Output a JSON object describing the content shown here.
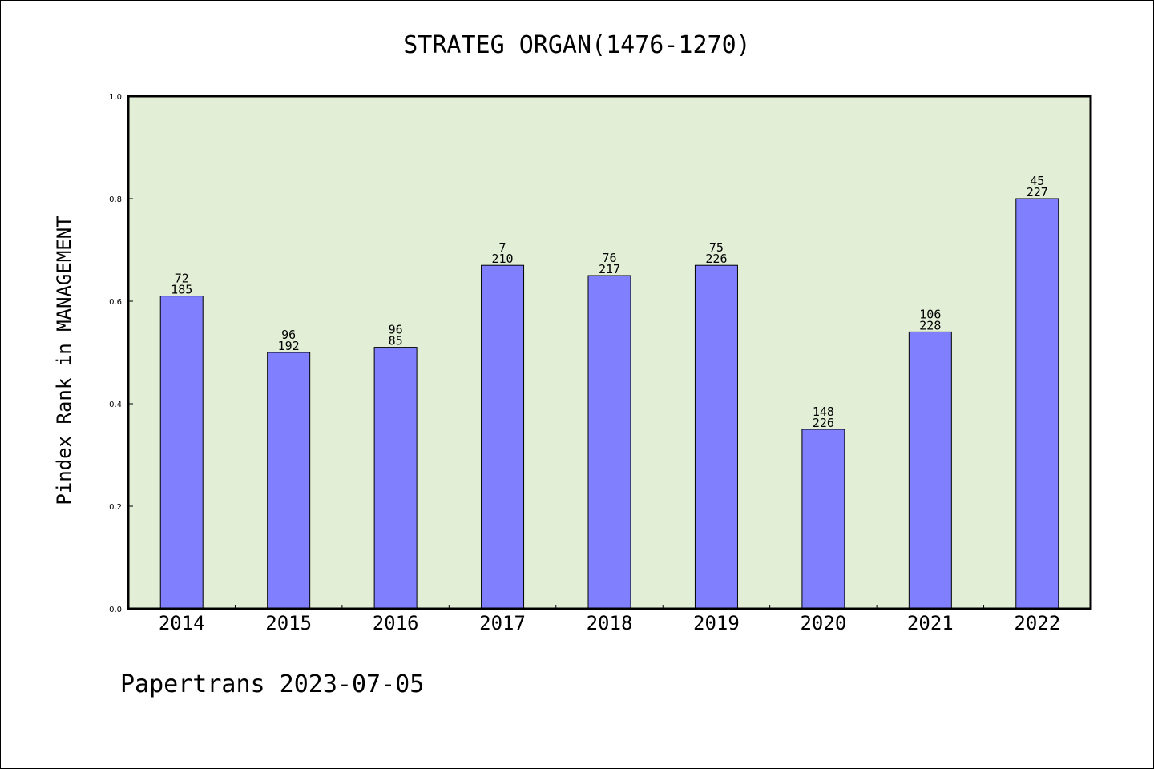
{
  "chart_data": {
    "type": "bar",
    "title": "STRATEG ORGAN(1476-1270)",
    "ylabel": "Pindex Rank in MANAGEMENT",
    "xlabel": "",
    "ylim": [
      0,
      1.0
    ],
    "yticks": [
      "0.0",
      "0.2",
      "0.4",
      "0.6",
      "0.8",
      "1.0"
    ],
    "categories": [
      "2014",
      "2015",
      "2016",
      "2017",
      "2018",
      "2019",
      "2020",
      "2021",
      "2022"
    ],
    "values": [
      0.61,
      0.5,
      0.51,
      0.67,
      0.65,
      0.67,
      0.35,
      0.54,
      0.8
    ],
    "labels_top": [
      "72",
      "96",
      "96",
      "7",
      "76",
      "75",
      "148",
      "106",
      "45"
    ],
    "labels_bottom": [
      "185",
      "192",
      "85",
      "210",
      "217",
      "226",
      "226",
      "228",
      "227"
    ],
    "grid": false,
    "legend": "none",
    "colors": {
      "plot_background": "#e2efd6",
      "bar_fill": "#8080ff",
      "bar_stroke": "#000000"
    }
  },
  "footer": "Papertrans 2023-07-05"
}
